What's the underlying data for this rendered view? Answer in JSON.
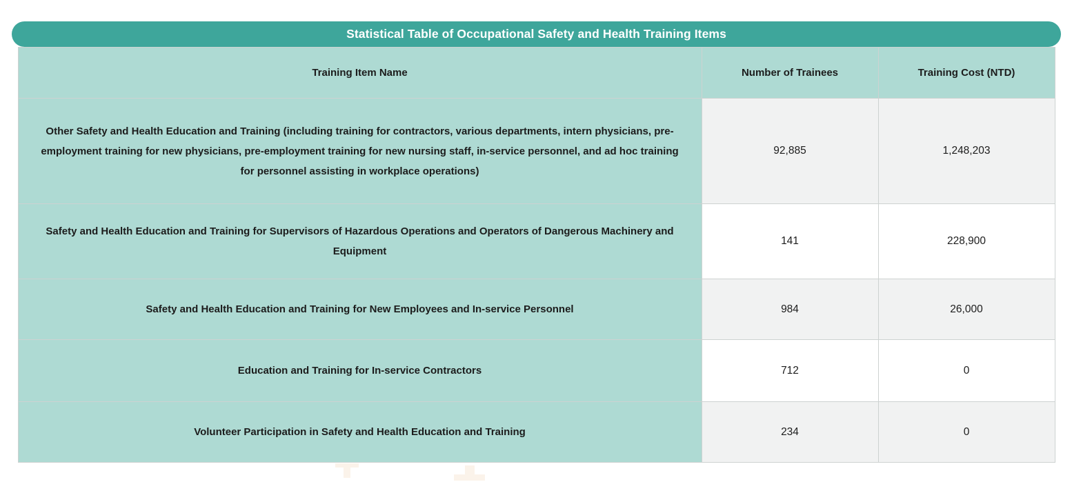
{
  "title": "Statistical Table of Occupational Safety and Health Training Items",
  "table": {
    "columns": [
      "Training Item Name",
      "Number of Trainees",
      "Training Cost (NTD)"
    ],
    "rows": [
      {
        "name": "Other Safety and Health Education and Training (including training for contractors, various departments, intern physicians, pre-employment training for new physicians, pre-employment training for new nursing staff, in-service personnel, and ad hoc training for personnel assisting in workplace operations)",
        "trainees": "92,885",
        "cost": "1,248,203"
      },
      {
        "name": "Safety and Health Education and Training for Supervisors of Hazardous Operations and Operators of Dangerous Machinery and Equipment",
        "trainees": "141",
        "cost": "228,900"
      },
      {
        "name": "Safety and Health Education and Training for New Employees and In-service Personnel",
        "trainees": "984",
        "cost": "26,000"
      },
      {
        "name": "Education and Training for In-service Contractors",
        "trainees": "712",
        "cost": "0"
      },
      {
        "name": "Volunteer Participation in Safety and Health Education and Training",
        "trainees": "234",
        "cost": "0"
      }
    ]
  },
  "chart_data": {
    "type": "table",
    "title": "Statistical Table of Occupational Safety and Health Training Items",
    "columns": [
      "Training Item Name",
      "Number of Trainees",
      "Training Cost (NTD)"
    ],
    "rows": [
      [
        "Other Safety and Health Education and Training (including training for contractors, various departments, intern physicians, pre-employment training for new physicians, pre-employment training for new nursing staff, in-service personnel, and ad hoc training for personnel assisting in workplace operations)",
        92885,
        1248203
      ],
      [
        "Safety and Health Education and Training for Supervisors of Hazardous Operations and Operators of Dangerous Machinery and Equipment",
        141,
        228900
      ],
      [
        "Safety and Health Education and Training for New Employees and In-service Personnel",
        984,
        26000
      ],
      [
        "Education and Training for In-service Contractors",
        712,
        0
      ],
      [
        "Volunteer Participation in Safety and Health Education and Training",
        234,
        0
      ]
    ]
  },
  "theme": {
    "header_bar_color": "#3EA69B",
    "title_text_color": "#FFFFFF",
    "row_label_color": "#AEDAD3",
    "alt_cell_color": "#F1F2F2",
    "cell_color": "#FFFFFF",
    "border_color": "#CDD2D1",
    "outer_border_color": "#C5CAC9",
    "body_text_color": "#1C1C1C",
    "artifact_color": "#FBF3EA"
  }
}
